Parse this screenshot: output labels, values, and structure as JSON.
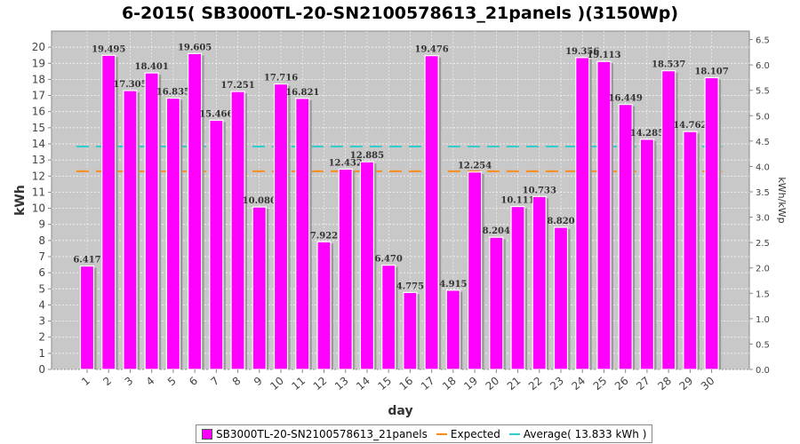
{
  "chart_data": {
    "type": "bar",
    "title": "6-2015( SB3000TL-20-SN2100578613_21panels )(3150Wp)",
    "xlabel": "day",
    "ylabel": "kWh",
    "y2label": "kWh/kWp",
    "categories": [
      "1",
      "2",
      "3",
      "4",
      "5",
      "6",
      "7",
      "8",
      "9",
      "10",
      "11",
      "12",
      "13",
      "14",
      "15",
      "16",
      "17",
      "18",
      "19",
      "20",
      "21",
      "22",
      "23",
      "24",
      "25",
      "26",
      "27",
      "28",
      "29",
      "30"
    ],
    "series": [
      {
        "name": "SB3000TL-20-SN2100578613_21panels",
        "color": "#ff00ff",
        "values": [
          6.417,
          19.495,
          17.305,
          18.401,
          16.835,
          19.605,
          15.466,
          17.251,
          10.08,
          17.716,
          16.821,
          7.922,
          12.432,
          12.885,
          6.47,
          4.775,
          19.476,
          4.915,
          12.254,
          8.204,
          10.111,
          10.733,
          8.82,
          19.356,
          19.113,
          16.449,
          14.285,
          18.537,
          14.762,
          18.107
        ],
        "labels": [
          "6.417",
          "19.495",
          "17.305",
          "18.401",
          "16.835",
          "19.605",
          "15.466",
          "17.251",
          "10.080",
          "17.716",
          "16.821",
          "7.922",
          "12.432",
          "12.885",
          "6.470",
          "4.775",
          "19.476",
          "4.915",
          "12.254",
          "8.204",
          "10.111",
          "10.733",
          "8.820",
          "19.356",
          "19.113",
          "16.449",
          "14.285",
          "18.537",
          "14.762",
          "18.107"
        ]
      }
    ],
    "expected": {
      "name": "Expected",
      "value": 12.3,
      "color": "#ff8c1a"
    },
    "average": {
      "name": "Average( 13.833 kWh )",
      "value": 13.833,
      "color": "#33cccc"
    },
    "ylim": [
      0,
      21
    ],
    "yticks": [
      "0",
      "1",
      "2",
      "3",
      "4",
      "5",
      "6",
      "7",
      "8",
      "9",
      "10",
      "11",
      "12",
      "13",
      "14",
      "15",
      "16",
      "17",
      "18",
      "19",
      "20"
    ],
    "y2lim": [
      0,
      6.667
    ],
    "y2ticks": [
      "0.0",
      "0.5",
      "1.0",
      "1.5",
      "2.0",
      "2.5",
      "3.0",
      "3.5",
      "4.0",
      "4.5",
      "5.0",
      "5.5",
      "6.0",
      "6.5"
    ],
    "grid": true,
    "legend_position": "bottom"
  },
  "legend": {
    "series_label": "SB3000TL-20-SN2100578613_21panels",
    "expected_label": "Expected",
    "average_label": "Average( 13.833 kWh )"
  }
}
